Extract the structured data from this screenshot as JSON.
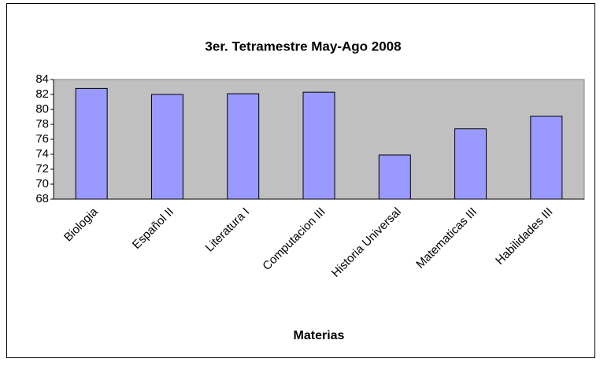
{
  "chart_data": {
    "type": "bar",
    "title": "3er. Tetramestre May-Ago 2008",
    "x_label": "Materias",
    "categories": [
      "Biologia",
      "Español II",
      "Literatura I",
      "Computacion III",
      "Historia Universal",
      "Matematicas III",
      "Habilidades III"
    ],
    "values": [
      82.8,
      82,
      82.1,
      82.3,
      73.9,
      77.4,
      79.1
    ],
    "color": "#9999ff",
    "ylim": [
      68,
      84
    ],
    "yticks": [
      68,
      70,
      72,
      74,
      76,
      78,
      80,
      82,
      84
    ],
    "grid": false
  }
}
